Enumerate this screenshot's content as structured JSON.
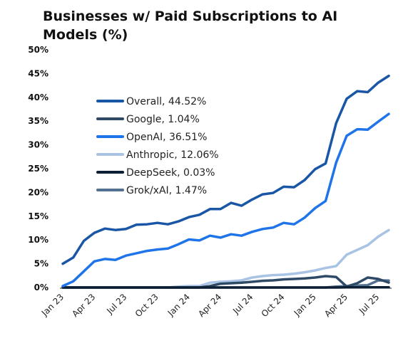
{
  "chart_data": {
    "type": "line",
    "title": "Businesses w/ Paid Subscriptions to AI Models (%)",
    "xlabel": "",
    "ylabel": "",
    "ylim": [
      0,
      50
    ],
    "yticks": [
      "0%",
      "5%",
      "10%",
      "15%",
      "20%",
      "25%",
      "30%",
      "35%",
      "40%",
      "45%",
      "50%"
    ],
    "grid": false,
    "legend_position": "upper-left",
    "x": [
      "Jan 23",
      "Feb 23",
      "Mar 23",
      "Apr 23",
      "May 23",
      "Jun 23",
      "Jul 23",
      "Aug 23",
      "Sep 23",
      "Oct 23",
      "Nov 23",
      "Dec 23",
      "Jan 24",
      "Feb 24",
      "Mar 24",
      "Apr 24",
      "May 24",
      "Jun 24",
      "Jul 24",
      "Aug 24",
      "Sep 24",
      "Oct 24",
      "Nov 24",
      "Dec 24",
      "Jan 25",
      "Feb 25",
      "Mar 25",
      "Apr 25",
      "May 25",
      "Jun 25",
      "Jul 25",
      "Aug 25"
    ],
    "xtick_labels": [
      "Jan 23",
      "Apr 23",
      "Jul 23",
      "Oct 23",
      "Jan 24",
      "Apr 24",
      "Jul 24",
      "Oct 24",
      "Jan 25",
      "Apr 25",
      "Jul 25"
    ],
    "series": [
      {
        "name": "Overall, 44.52%",
        "color": "#1a56a6",
        "values": [
          5.0,
          6.3,
          9.8,
          11.5,
          12.4,
          12.1,
          12.3,
          13.2,
          13.3,
          13.6,
          13.3,
          13.9,
          14.8,
          15.3,
          16.5,
          16.5,
          17.8,
          17.2,
          18.5,
          19.6,
          19.9,
          21.2,
          21.1,
          22.6,
          24.9,
          26.1,
          34.6,
          39.7,
          41.3,
          41.1,
          43.1,
          44.52
        ]
      },
      {
        "name": "Google, 1.04%",
        "color": "#2f4a66",
        "values": [
          0,
          0,
          0,
          0,
          0,
          0,
          0,
          0,
          0,
          0,
          0,
          0,
          0,
          0,
          0.3,
          0.8,
          0.9,
          1.0,
          1.2,
          1.4,
          1.5,
          1.7,
          1.8,
          1.9,
          2.1,
          2.4,
          2.2,
          0.2,
          0.9,
          2.1,
          1.8,
          1.04
        ]
      },
      {
        "name": "OpenAI, 36.51%",
        "color": "#1e74e8",
        "values": [
          0.3,
          1.3,
          3.4,
          5.5,
          6.0,
          5.8,
          6.7,
          7.2,
          7.7,
          8.0,
          8.2,
          9.1,
          10.1,
          9.9,
          10.9,
          10.5,
          11.2,
          10.9,
          11.7,
          12.3,
          12.6,
          13.6,
          13.3,
          14.7,
          16.7,
          18.2,
          26.3,
          31.9,
          33.3,
          33.2,
          34.9,
          36.51
        ]
      },
      {
        "name": "Anthropic, 12.06%",
        "color": "#a8c3e3",
        "values": [
          0,
          0,
          0,
          0,
          0,
          0,
          0,
          0,
          0,
          0,
          0,
          0.2,
          0.3,
          0.3,
          1.0,
          1.2,
          1.3,
          1.5,
          2.1,
          2.4,
          2.6,
          2.7,
          2.9,
          3.2,
          3.6,
          4.1,
          4.5,
          6.9,
          7.9,
          8.9,
          10.7,
          12.06
        ]
      },
      {
        "name": "DeepSeek, 0.03%",
        "color": "#0c1e33",
        "values": [
          0,
          0,
          0,
          0,
          0,
          0,
          0,
          0,
          0,
          0,
          0,
          0,
          0,
          0,
          0,
          0,
          0,
          0,
          0,
          0,
          0,
          0,
          0,
          0,
          0,
          0,
          0,
          0.05,
          0.05,
          0.04,
          0.03,
          0.03
        ]
      },
      {
        "name": "Grok/xAI, 1.47%",
        "color": "#52708f",
        "values": [
          0,
          0,
          0,
          0,
          0,
          0,
          0,
          0,
          0,
          0,
          0,
          0,
          0,
          0,
          0,
          0,
          0,
          0,
          0,
          0,
          0,
          0,
          0,
          0,
          0,
          0,
          0.2,
          0.3,
          0.4,
          0.5,
          1.5,
          1.47
        ]
      }
    ]
  }
}
